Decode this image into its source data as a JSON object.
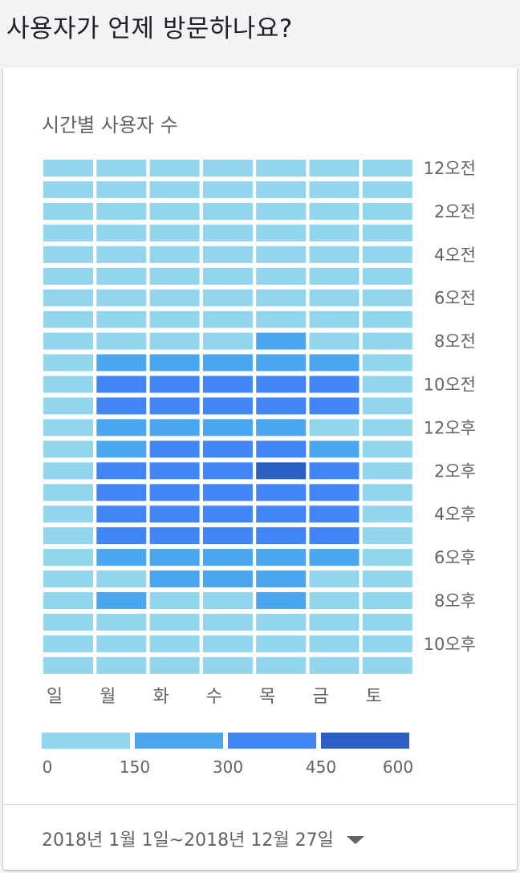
{
  "page": {
    "title": "사용자가 언제 방문하나요?"
  },
  "card": {
    "chart_title": "시간별 사용자 수",
    "date_range": "2018년 1월 1일~2018년 12월 27일"
  },
  "colors": {
    "bin_0_150": "#93d5ec",
    "bin_150_300": "#4aa7ef",
    "bin_300_450": "#4285f4",
    "bin_450_600": "#2b5fc1"
  },
  "chart_data": {
    "type": "heatmap",
    "title": "시간별 사용자 수",
    "x_categories": [
      "일",
      "월",
      "화",
      "수",
      "목",
      "금",
      "토"
    ],
    "y_tick_labels": [
      "12오전",
      "2오전",
      "4오전",
      "6오전",
      "8오전",
      "10오전",
      "12오후",
      "2오후",
      "4오후",
      "6오후",
      "8오후",
      "10오후"
    ],
    "rows": 24,
    "legend": {
      "ticks": [
        "0",
        "150",
        "300",
        "450",
        "600"
      ],
      "bins": [
        {
          "range": "0-150",
          "color": "#93d5ec"
        },
        {
          "range": "150-300",
          "color": "#4aa7ef"
        },
        {
          "range": "300-450",
          "color": "#4285f4"
        },
        {
          "range": "450-600",
          "color": "#2b5fc1"
        }
      ]
    },
    "bin_matrix": [
      [
        0,
        0,
        0,
        0,
        0,
        0,
        0
      ],
      [
        0,
        0,
        0,
        0,
        0,
        0,
        0
      ],
      [
        0,
        0,
        0,
        0,
        0,
        0,
        0
      ],
      [
        0,
        0,
        0,
        0,
        0,
        0,
        0
      ],
      [
        0,
        0,
        0,
        0,
        0,
        0,
        0
      ],
      [
        0,
        0,
        0,
        0,
        0,
        0,
        0
      ],
      [
        0,
        0,
        0,
        0,
        0,
        0,
        0
      ],
      [
        0,
        0,
        0,
        0,
        0,
        0,
        0
      ],
      [
        0,
        0,
        0,
        0,
        1,
        0,
        0
      ],
      [
        0,
        1,
        1,
        1,
        1,
        1,
        0
      ],
      [
        0,
        2,
        2,
        2,
        2,
        2,
        0
      ],
      [
        0,
        2,
        2,
        2,
        2,
        2,
        0
      ],
      [
        0,
        1,
        1,
        1,
        1,
        0,
        0
      ],
      [
        0,
        1,
        2,
        2,
        2,
        1,
        0
      ],
      [
        0,
        2,
        2,
        2,
        3,
        2,
        0
      ],
      [
        0,
        2,
        2,
        2,
        2,
        2,
        0
      ],
      [
        0,
        2,
        2,
        2,
        2,
        2,
        0
      ],
      [
        0,
        2,
        2,
        2,
        2,
        2,
        0
      ],
      [
        0,
        1,
        1,
        1,
        1,
        1,
        0
      ],
      [
        0,
        0,
        1,
        1,
        1,
        0,
        0
      ],
      [
        0,
        1,
        0,
        0,
        1,
        0,
        0
      ],
      [
        0,
        0,
        0,
        0,
        0,
        0,
        0
      ],
      [
        0,
        0,
        0,
        0,
        0,
        0,
        0
      ],
      [
        0,
        0,
        0,
        0,
        0,
        0,
        0
      ]
    ]
  }
}
